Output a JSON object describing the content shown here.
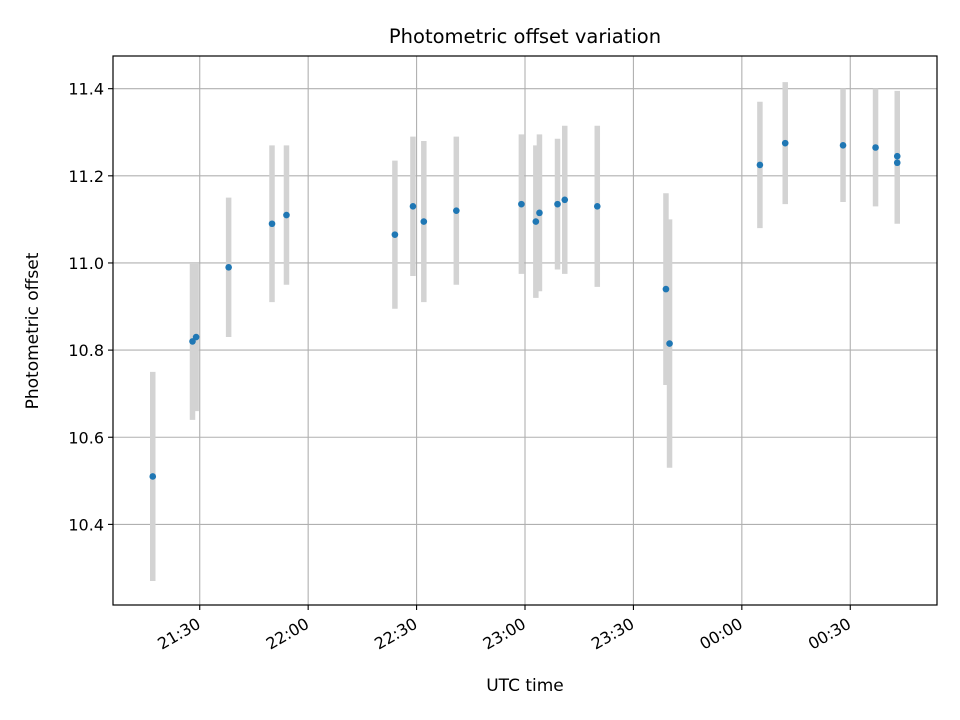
{
  "chart_data": {
    "type": "scatter",
    "title": "Photometric offset variation",
    "xlabel": "UTC time",
    "ylabel": "Photometric offset",
    "grid": true,
    "x_ticks": [
      {
        "time": "21:30",
        "label": "21:30"
      },
      {
        "time": "22:00",
        "label": "22:00"
      },
      {
        "time": "22:30",
        "label": "22:30"
      },
      {
        "time": "23:00",
        "label": "23:00"
      },
      {
        "time": "23:30",
        "label": "23:30"
      },
      {
        "time": "00:00",
        "label": "00:00"
      },
      {
        "time": "00:30",
        "label": "00:30"
      }
    ],
    "y_ticks": [
      {
        "value": 10.4,
        "label": "10.4"
      },
      {
        "value": 10.6,
        "label": "10.6"
      },
      {
        "value": 10.8,
        "label": "10.8"
      },
      {
        "value": 11.0,
        "label": "11.0"
      },
      {
        "value": 11.2,
        "label": "11.2"
      },
      {
        "value": 11.4,
        "label": "11.4"
      }
    ],
    "xlim": [
      "21:06",
      "00:54"
    ],
    "ylim": [
      10.215,
      11.475
    ],
    "marker_color": "#1f77b4",
    "errorbar_color": "#d3d3d3",
    "points": [
      {
        "time": "21:17",
        "y": 10.51,
        "err": 0.24
      },
      {
        "time": "21:28",
        "y": 10.82,
        "err": 0.18
      },
      {
        "time": "21:29",
        "y": 10.83,
        "err": 0.17
      },
      {
        "time": "21:38",
        "y": 10.99,
        "err": 0.16
      },
      {
        "time": "21:50",
        "y": 11.09,
        "err": 0.18
      },
      {
        "time": "21:54",
        "y": 11.11,
        "err": 0.16
      },
      {
        "time": "22:24",
        "y": 11.065,
        "err": 0.17
      },
      {
        "time": "22:29",
        "y": 11.13,
        "err": 0.16
      },
      {
        "time": "22:32",
        "y": 11.095,
        "err": 0.185
      },
      {
        "time": "22:41",
        "y": 11.12,
        "err": 0.17
      },
      {
        "time": "22:59",
        "y": 11.135,
        "err": 0.16
      },
      {
        "time": "23:03",
        "y": 11.095,
        "err": 0.175
      },
      {
        "time": "23:04",
        "y": 11.115,
        "err": 0.18
      },
      {
        "time": "23:09",
        "y": 11.135,
        "err": 0.15
      },
      {
        "time": "23:11",
        "y": 11.145,
        "err": 0.17
      },
      {
        "time": "23:20",
        "y": 11.13,
        "err": 0.185
      },
      {
        "time": "23:39",
        "y": 10.94,
        "err": 0.22
      },
      {
        "time": "23:40",
        "y": 10.815,
        "err": 0.285
      },
      {
        "time": "00:05",
        "y": 11.225,
        "err": 0.145
      },
      {
        "time": "00:12",
        "y": 11.275,
        "err": 0.14
      },
      {
        "time": "00:28",
        "y": 11.27,
        "err": 0.13
      },
      {
        "time": "00:37",
        "y": 11.265,
        "err": 0.135
      },
      {
        "time": "00:43",
        "y": 11.245,
        "err": 0.15
      },
      {
        "time": "00:43",
        "y": 11.23,
        "err": 0.14
      }
    ]
  }
}
